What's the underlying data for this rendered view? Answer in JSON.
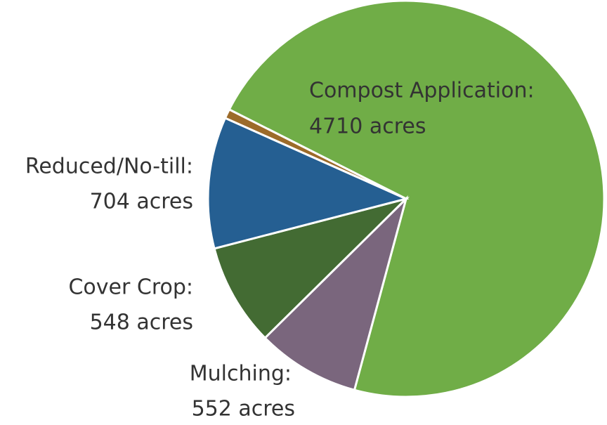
{
  "chart_data": {
    "type": "pie",
    "categories": [
      "Compost Application:",
      "Mulching:",
      "Cover Crop:",
      "Reduced/No-till:",
      null
    ],
    "values": [
      4710,
      552,
      548,
      704,
      50
    ],
    "value_labels": [
      "4710 acres",
      "552 acres",
      "548 acres",
      "704 acres",
      null
    ],
    "colors": [
      "#70ad47",
      "#7a667d",
      "#436b33",
      "#255f92",
      "#9c6b2a"
    ]
  }
}
